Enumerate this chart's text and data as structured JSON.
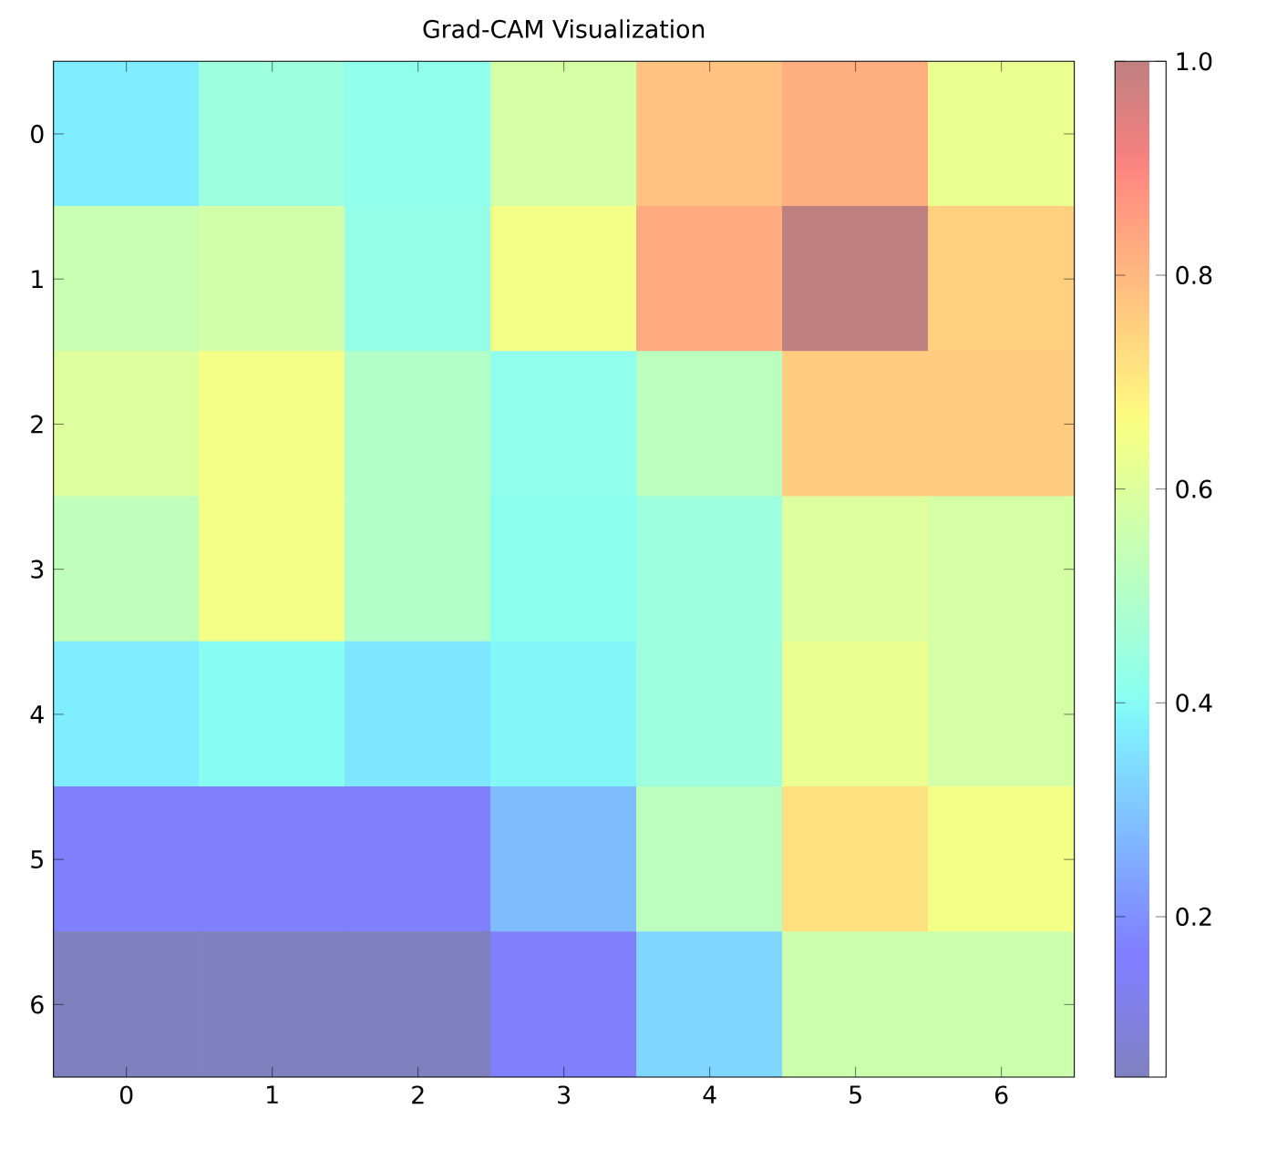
{
  "chart_data": {
    "type": "heatmap",
    "title": "Grad-CAM Visualization",
    "categories": [
      "0",
      "1",
      "2",
      "3",
      "4",
      "5",
      "6"
    ],
    "y_categories": [
      "0",
      "1",
      "2",
      "3",
      "4",
      "5",
      "6"
    ],
    "cells": [
      [
        0.37,
        0.45,
        0.42,
        0.58,
        0.78,
        0.82,
        0.63
      ],
      [
        0.55,
        0.57,
        0.43,
        0.65,
        0.83,
        1.0,
        0.75
      ],
      [
        0.6,
        0.65,
        0.5,
        0.42,
        0.52,
        0.76,
        0.76
      ],
      [
        0.53,
        0.65,
        0.5,
        0.41,
        0.45,
        0.6,
        0.58
      ],
      [
        0.37,
        0.4,
        0.36,
        0.39,
        0.45,
        0.63,
        0.58
      ],
      [
        0.15,
        0.15,
        0.15,
        0.28,
        0.52,
        0.72,
        0.65
      ],
      [
        0.05,
        0.05,
        0.05,
        0.15,
        0.33,
        0.56,
        0.56
      ]
    ],
    "clim": [
      0.05,
      1.0
    ],
    "cticks": [
      0.2,
      0.4,
      0.6,
      0.8,
      {
        "value": 1.0,
        "label": "1.0"
      }
    ]
  }
}
